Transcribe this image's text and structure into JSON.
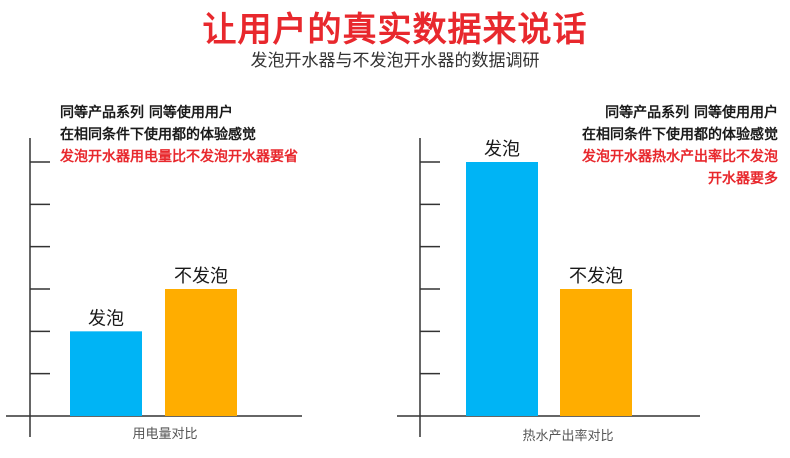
{
  "header": {
    "title": "让用户的真实数据来说话",
    "subtitle": "发泡开水器与不发泡开水器的数据调研"
  },
  "chart_data": [
    {
      "type": "bar",
      "categories": [
        "发泡",
        "不发泡"
      ],
      "values": [
        2,
        3
      ],
      "xlabel": "用电量对比",
      "ylim": [
        0,
        6
      ],
      "bar_colors": [
        "#00b4f5",
        "#ffad00"
      ],
      "notes": [
        "同等产品系列 同等使用用户",
        "在相同条件下使用都的体验感觉"
      ],
      "highlight": [
        "发泡开水器用电量比不发泡开水器要省"
      ]
    },
    {
      "type": "bar",
      "categories": [
        "发泡",
        "不发泡"
      ],
      "values": [
        6,
        3
      ],
      "xlabel": "热水产出率对比",
      "ylim": [
        0,
        6
      ],
      "bar_colors": [
        "#00b4f5",
        "#ffad00"
      ],
      "notes": [
        "同等产品系列 同等使用用户",
        "在相同条件下使用都的体验感觉"
      ],
      "highlight": [
        "发泡开水器热水产出率比不发泡",
        "开水器要多"
      ]
    }
  ]
}
